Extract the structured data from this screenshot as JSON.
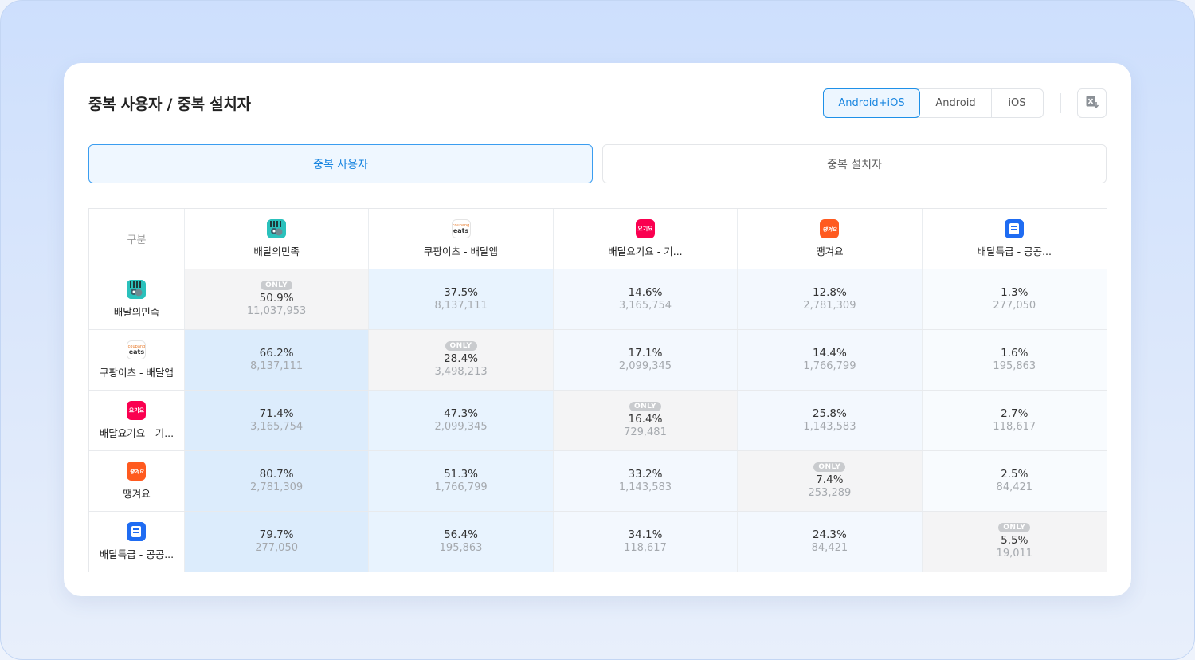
{
  "title": "중복 사용자 / 중복 설치자",
  "platform_tabs": [
    "Android+iOS",
    "Android",
    "iOS"
  ],
  "platform_selected": "Android+iOS",
  "excel_button": "excel-download-icon",
  "view_tabs": [
    {
      "label": "중복 사용자",
      "active": true
    },
    {
      "label": "중복 설치자",
      "active": false
    }
  ],
  "table": {
    "corner_label": "구분",
    "only_label": "ONLY",
    "apps": [
      {
        "name": "배달의민족",
        "icon": "baemin-icon"
      },
      {
        "name": "쿠팡이츠 - 배달앱",
        "icon": "coupang-eats-icon"
      },
      {
        "name": "배달요기요 - 기...",
        "icon": "yogiyo-icon"
      },
      {
        "name": "땡겨요",
        "icon": "ttaenggyeoyo-icon"
      },
      {
        "name": "배달특급 - 공공...",
        "icon": "baedal-teukgeup-icon"
      }
    ],
    "row_header_names": [
      "배달의민족",
      "쿠팡이츠 - 배달앱",
      "배달요기요 - 기...",
      "땡겨요",
      "배달특급 - 공공..."
    ],
    "column_header_names": [
      "배달의민족",
      "쿠팡이츠 - 배달앱",
      "배달요기요 - 기...",
      "땡겨요",
      "배달특급 - 공공..."
    ],
    "rows": [
      [
        {
          "pct": "50.9%",
          "count": "11,037,953",
          "only": true
        },
        {
          "pct": "37.5%",
          "count": "8,137,111"
        },
        {
          "pct": "14.6%",
          "count": "3,165,754"
        },
        {
          "pct": "12.8%",
          "count": "2,781,309"
        },
        {
          "pct": "1.3%",
          "count": "277,050"
        }
      ],
      [
        {
          "pct": "66.2%",
          "count": "8,137,111"
        },
        {
          "pct": "28.4%",
          "count": "3,498,213",
          "only": true
        },
        {
          "pct": "17.1%",
          "count": "2,099,345"
        },
        {
          "pct": "14.4%",
          "count": "1,766,799"
        },
        {
          "pct": "1.6%",
          "count": "195,863"
        }
      ],
      [
        {
          "pct": "71.4%",
          "count": "3,165,754"
        },
        {
          "pct": "47.3%",
          "count": "2,099,345"
        },
        {
          "pct": "16.4%",
          "count": "729,481",
          "only": true
        },
        {
          "pct": "25.8%",
          "count": "1,143,583"
        },
        {
          "pct": "2.7%",
          "count": "118,617"
        }
      ],
      [
        {
          "pct": "80.7%",
          "count": "2,781,309"
        },
        {
          "pct": "51.3%",
          "count": "1,766,799"
        },
        {
          "pct": "33.2%",
          "count": "1,143,583"
        },
        {
          "pct": "7.4%",
          "count": "253,289",
          "only": true
        },
        {
          "pct": "2.5%",
          "count": "84,421"
        }
      ],
      [
        {
          "pct": "79.7%",
          "count": "277,050"
        },
        {
          "pct": "56.4%",
          "count": "195,863"
        },
        {
          "pct": "34.1%",
          "count": "118,617"
        },
        {
          "pct": "24.3%",
          "count": "84,421"
        },
        {
          "pct": "5.5%",
          "count": "19,011",
          "only": true
        }
      ]
    ]
  },
  "colors": {
    "accent": "#1a86e0",
    "heat_strong": "#dcecfc",
    "heat_medium": "#e8f3fe",
    "heat_light": "#f3f8fe",
    "diagonal": "#f4f4f5"
  }
}
